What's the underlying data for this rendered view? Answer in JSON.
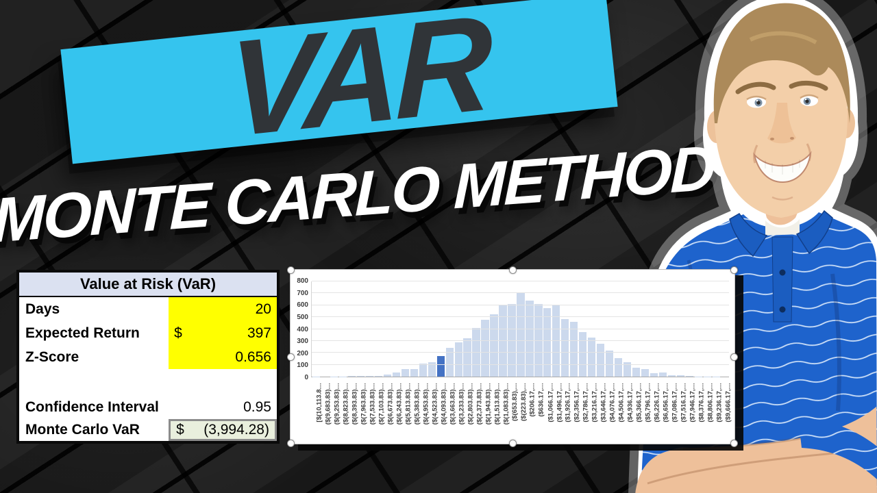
{
  "banner": {
    "title": "VAR",
    "color": "#35c4ee",
    "text_color": "#303438"
  },
  "subtitle": "MONTE CARLO METHOD",
  "table": {
    "header": "Value at Risk (VaR)",
    "rows": [
      {
        "label": "Days",
        "prefix": "",
        "value": "20",
        "highlight": "yellow"
      },
      {
        "label": "Expected Return",
        "prefix": "$",
        "value": "397",
        "highlight": "yellow"
      },
      {
        "label": "Z-Score",
        "prefix": "",
        "value": "0.656",
        "highlight": "yellow"
      },
      {
        "label": "",
        "prefix": "",
        "value": "",
        "highlight": "none"
      },
      {
        "label": "Confidence Interval",
        "prefix": "",
        "value": "0.95",
        "highlight": "none"
      },
      {
        "label": "Monte Carlo VaR",
        "prefix": "$",
        "value": "(3,994.28)",
        "highlight": "green"
      }
    ],
    "header_bg": "#dbe1f1",
    "yellow": "#ffff00",
    "green": "#e9efdd"
  },
  "chart_data": {
    "type": "bar",
    "title": "",
    "xlabel": "",
    "ylabel": "",
    "ylim": [
      0,
      800
    ],
    "yticks": [
      0,
      100,
      200,
      300,
      400,
      500,
      600,
      700,
      800
    ],
    "grid": true,
    "legend": false,
    "bar_color": "#ccd9ed",
    "highlight_color": "#4472c4",
    "highlight_index": 14,
    "selection_handles": true,
    "categories": [
      "[$(10,113.8…",
      "($(9,683.83)…",
      "($(9,253.83)…",
      "($(8,823.83)…",
      "($(8,393.83)…",
      "($(7,963.83)…",
      "($(7,533.83)…",
      "($(7,103.83)…",
      "($(6,673.83)…",
      "($(6,243.83)…",
      "($(5,813.83)…",
      "($(5,383.83)…",
      "($(4,953.83)…",
      "($(4,523.83)…",
      "($(4,093.83)…",
      "($(3,663.83)…",
      "($(3,233.83)…",
      "($(2,803.83)…",
      "($(2,373.83)…",
      "($(1,943.83)…",
      "($(1,513.83)…",
      "($(1,083.83)…",
      "($(653.83),…",
      "($(223.83),…",
      "($206.17,…",
      "($636.17,…",
      "($1,066.17,…",
      "($1,496.17,…",
      "($1,926.17,…",
      "($2,356.17,…",
      "($2,786.17,…",
      "($3,216.17,…",
      "($3,646.17,…",
      "($4,076.17,…",
      "($4,506.17,…",
      "($4,936.17,…",
      "($5,366.17,…",
      "($5,796.17,…",
      "($6,226.17,…",
      "($6,656.17,…",
      "($7,086.17,…",
      "($7,516.17,…",
      "($7,946.17,…",
      "($8,376.17,…",
      "($8,806.17,…",
      "($9,236.17,…",
      "($9,666.17,…"
    ],
    "values": [
      2,
      0,
      1,
      1,
      3,
      4,
      3,
      8,
      18,
      35,
      65,
      62,
      112,
      120,
      175,
      240,
      287,
      325,
      410,
      480,
      525,
      600,
      612,
      700,
      638,
      611,
      577,
      597,
      486,
      463,
      374,
      327,
      278,
      219,
      153,
      120,
      75,
      64,
      30,
      32,
      13,
      9,
      4,
      2,
      1,
      1,
      0
    ]
  },
  "person": {
    "alt_label": "presenter in blue striped polo, arms crossed"
  }
}
